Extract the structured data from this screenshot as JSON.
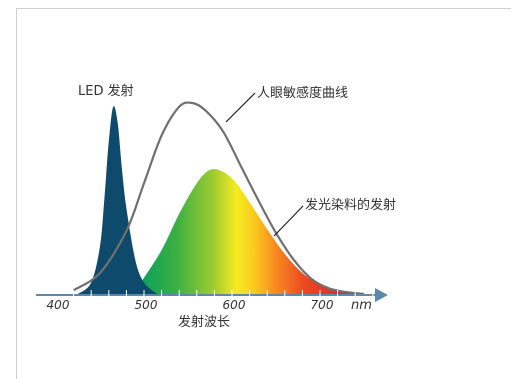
{
  "chart_data": {
    "type": "area",
    "title": "",
    "xlabel": "发射波长",
    "x_unit": "nm",
    "xlim": [
      375,
      780
    ],
    "x_ticks": [
      400,
      500,
      600,
      700
    ],
    "x_tick_labels": [
      "400",
      "500",
      "600",
      "700"
    ],
    "y_axis_shown": false,
    "ylim": [
      0,
      1.1
    ],
    "grid": false,
    "colors": {
      "axis": "#5f88a8",
      "led": "#0e4a6b",
      "eye_curve": "#707070",
      "dye_gradient": [
        "#0aa060",
        "#3cb040",
        "#a0cc30",
        "#f4ec20",
        "#fcc820",
        "#f88a20",
        "#ec4a22",
        "#dc2828"
      ]
    },
    "series": [
      {
        "name": "LED 发射",
        "kind": "filled-peak",
        "x": [
          425,
          440,
          450,
          455,
          460,
          465,
          470,
          475,
          480,
          490,
          500,
          515
        ],
        "y": [
          0.0,
          0.06,
          0.25,
          0.5,
          0.8,
          0.98,
          0.9,
          0.65,
          0.45,
          0.18,
          0.06,
          0.0
        ]
      },
      {
        "name": "人眼敏感度曲线",
        "kind": "line",
        "x": [
          420,
          450,
          480,
          500,
          520,
          540,
          555,
          570,
          590,
          610,
          630,
          650,
          670,
          690,
          710,
          730,
          750
        ],
        "y": [
          0.02,
          0.11,
          0.33,
          0.58,
          0.83,
          0.98,
          1.0,
          0.96,
          0.85,
          0.67,
          0.49,
          0.32,
          0.18,
          0.08,
          0.03,
          0.01,
          0.0
        ]
      },
      {
        "name": "发光染料的发射",
        "kind": "filled-gradient",
        "x": [
          495,
          520,
          540,
          560,
          575,
          590,
          605,
          620,
          640,
          660,
          680,
          700,
          720,
          740
        ],
        "y": [
          0.05,
          0.23,
          0.42,
          0.58,
          0.65,
          0.64,
          0.58,
          0.48,
          0.34,
          0.21,
          0.11,
          0.05,
          0.02,
          0.0
        ]
      }
    ],
    "annotations": [
      "LED 发射",
      "人眼敏感度曲线",
      "发光染料的发射"
    ]
  }
}
